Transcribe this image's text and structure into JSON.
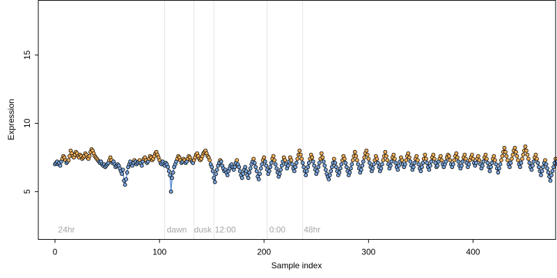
{
  "chart_data": {
    "type": "scatter",
    "title": "",
    "xlabel": "Sample index",
    "ylabel": "Expression",
    "xlim": [
      -16,
      479
    ],
    "ylim": [
      1.5,
      19
    ],
    "xticks": [
      0,
      100,
      200,
      300,
      400
    ],
    "yticks": [
      5,
      10,
      15
    ],
    "grid": false,
    "legend": "none",
    "colors": {
      "high": "#f5b25a",
      "low": "#7aa7e0",
      "line_high": "#f0a030",
      "line_low": "#5b8fd6",
      "vline": "#e3e3e3",
      "annotation": "#a6a6a6",
      "threshold": 7.3
    },
    "vlines": [
      105,
      133,
      152,
      203,
      237
    ],
    "annotations": [
      {
        "x": 3,
        "y": 2.0,
        "text": "24hr"
      },
      {
        "x": 107,
        "y": 2.0,
        "text": "dawn"
      },
      {
        "x": 133,
        "y": 2.0,
        "text": "dusk"
      },
      {
        "x": 153,
        "y": 2.0,
        "text": "12:00"
      },
      {
        "x": 205,
        "y": 2.0,
        "text": "0:00"
      },
      {
        "x": 238,
        "y": 2.0,
        "text": "48hr"
      }
    ],
    "y": [
      7.0,
      7.1,
      7.2,
      7.0,
      7.1,
      6.9,
      7.2,
      7.4,
      7.6,
      7.5,
      7.3,
      7.1,
      7.2,
      7.3,
      7.6,
      8.0,
      7.8,
      7.6,
      7.5,
      7.7,
      7.9,
      7.8,
      7.6,
      7.5,
      7.7,
      7.6,
      7.4,
      7.5,
      7.6,
      7.8,
      7.7,
      7.5,
      7.4,
      7.6,
      7.9,
      8.1,
      8.0,
      7.8,
      7.6,
      7.5,
      7.4,
      7.3,
      7.2,
      7.1,
      7.2,
      7.0,
      6.9,
      7.0,
      6.8,
      6.9,
      7.0,
      7.1,
      7.3,
      7.5,
      7.3,
      7.1,
      7.2,
      7.0,
      6.8,
      6.9,
      7.0,
      6.9,
      6.7,
      6.5,
      6.3,
      6.6,
      5.8,
      5.5,
      5.9,
      6.4,
      6.8,
      7.0,
      7.2,
      7.0,
      6.9,
      7.1,
      7.3,
      7.2,
      7.0,
      7.1,
      7.2,
      7.3,
      7.1,
      6.9,
      7.2,
      7.4,
      7.5,
      7.3,
      7.1,
      7.2,
      7.4,
      7.6,
      7.5,
      7.3,
      7.4,
      7.6,
      7.8,
      7.9,
      7.7,
      7.5,
      7.3,
      7.1,
      7.0,
      7.2,
      7.0,
      6.9,
      7.1,
      7.0,
      6.8,
      6.5,
      6.2,
      5.0,
      6.0,
      6.4,
      6.8,
      7.0,
      7.2,
      7.4,
      7.6,
      7.5,
      7.3,
      7.1,
      7.2,
      7.4,
      7.3,
      7.1,
      7.2,
      7.4,
      7.6,
      7.5,
      7.3,
      7.2,
      7.1,
      7.3,
      7.5,
      7.7,
      7.8,
      7.6,
      7.4,
      7.3,
      7.4,
      7.6,
      7.8,
      7.9,
      8.0,
      7.8,
      7.6,
      7.5,
      7.3,
      7.0,
      6.8,
      6.5,
      6.0,
      5.7,
      6.3,
      6.6,
      6.9,
      7.1,
      7.3,
      7.2,
      6.9,
      6.7,
      6.5,
      6.6,
      6.4,
      6.2,
      6.5,
      6.7,
      6.9,
      7.0,
      6.8,
      6.6,
      6.8,
      7.1,
      7.3,
      7.0,
      6.8,
      6.5,
      6.2,
      6.0,
      6.3,
      6.6,
      6.8,
      6.5,
      6.2,
      6.0,
      6.4,
      6.7,
      7.0,
      7.2,
      7.4,
      7.1,
      6.8,
      6.5,
      6.1,
      5.9,
      6.3,
      6.7,
      7.0,
      7.3,
      7.5,
      7.2,
      6.9,
      6.6,
      6.3,
      6.5,
      6.8,
      7.1,
      7.4,
      7.6,
      7.3,
      7.0,
      6.7,
      6.4,
      6.1,
      6.3,
      6.6,
      6.9,
      7.2,
      7.5,
      7.3,
      7.0,
      6.7,
      6.9,
      7.2,
      7.5,
      7.3,
      7.0,
      6.7,
      6.5,
      6.8,
      7.1,
      7.4,
      7.7,
      8.0,
      7.7,
      7.4,
      7.1,
      6.8,
      6.5,
      6.2,
      6.5,
      6.8,
      7.1,
      7.4,
      7.7,
      7.5,
      7.2,
      6.9,
      6.6,
      6.3,
      6.5,
      6.8,
      7.1,
      7.4,
      7.8,
      7.5,
      7.2,
      6.9,
      6.6,
      6.3,
      6.1,
      5.9,
      6.2,
      6.5,
      6.8,
      7.1,
      7.4,
      7.1,
      6.8,
      6.5,
      6.2,
      6.4,
      6.7,
      7.0,
      7.3,
      7.6,
      7.4,
      7.1,
      6.8,
      6.5,
      6.2,
      6.4,
      6.7,
      7.0,
      7.3,
      7.6,
      7.9,
      7.6,
      7.3,
      7.0,
      6.7,
      6.4,
      6.6,
      6.9,
      7.2,
      7.5,
      7.8,
      8.0,
      7.7,
      7.4,
      7.1,
      6.8,
      6.5,
      6.7,
      7.0,
      7.3,
      7.6,
      7.4,
      7.1,
      6.8,
      6.5,
      6.7,
      7.0,
      7.3,
      7.6,
      7.9,
      7.6,
      7.3,
      7.0,
      6.7,
      6.9,
      7.2,
      7.5,
      7.7,
      7.4,
      7.1,
      6.8,
      6.6,
      6.9,
      7.2,
      7.5,
      7.3,
      7.0,
      6.8,
      7.0,
      7.3,
      7.6,
      7.8,
      7.5,
      7.2,
      6.9,
      6.6,
      6.8,
      7.1,
      7.4,
      7.6,
      7.3,
      7.0,
      6.7,
      6.5,
      6.8,
      7.1,
      7.4,
      7.7,
      7.4,
      7.1,
      6.8,
      6.6,
      6.9,
      7.2,
      7.5,
      7.7,
      7.4,
      7.1,
      6.8,
      6.9,
      7.2,
      7.4,
      7.6,
      7.3,
      7.0,
      6.8,
      7.0,
      7.2,
      7.5,
      7.7,
      7.6,
      7.3,
      7.0,
      6.8,
      7.0,
      7.3,
      7.6,
      7.8,
      7.5,
      7.2,
      6.9,
      6.7,
      6.9,
      7.2,
      7.5,
      7.7,
      7.4,
      7.1,
      6.8,
      7.0,
      7.3,
      7.5,
      7.7,
      7.4,
      7.1,
      6.9,
      7.1,
      7.4,
      7.6,
      7.3,
      7.0,
      6.7,
      6.9,
      7.2,
      7.5,
      7.7,
      7.4,
      7.1,
      6.8,
      6.5,
      6.8,
      7.1,
      7.4,
      7.6,
      7.3,
      7.0,
      6.7,
      6.4,
      6.7,
      7.0,
      7.3,
      7.6,
      7.9,
      8.2,
      7.9,
      7.6,
      7.3,
      7.0,
      6.8,
      7.1,
      7.4,
      7.7,
      8.0,
      8.2,
      7.9,
      7.6,
      7.3,
      7.0,
      6.8,
      7.1,
      7.4,
      7.7,
      8.0,
      8.3,
      8.0,
      7.7,
      7.4,
      7.1,
      6.8,
      6.6,
      6.9,
      7.2,
      7.5,
      7.7,
      7.4,
      7.1,
      6.8,
      6.5,
      6.2,
      6.5,
      6.8,
      7.1,
      7.3,
      7.0,
      6.7,
      6.4,
      6.1,
      5.8,
      6.2,
      6.5,
      6.8,
      7.1,
      7.4,
      7.2,
      7.0
    ]
  }
}
